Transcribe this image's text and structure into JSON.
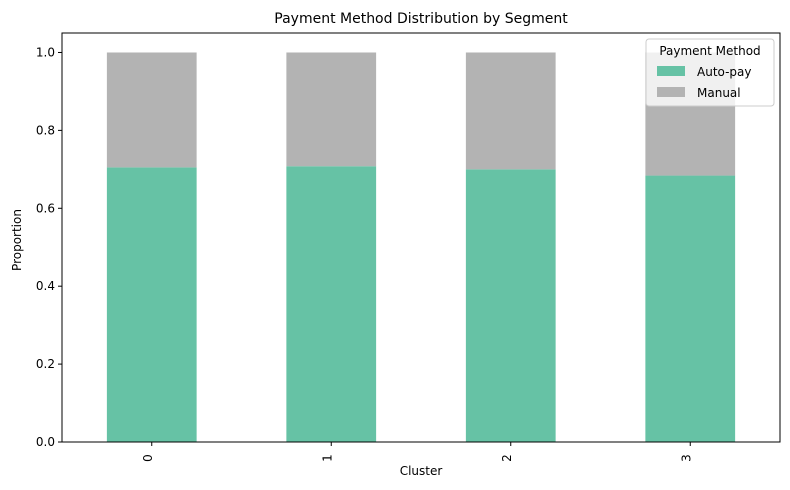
{
  "chart_data": {
    "type": "bar",
    "stacked": true,
    "title": "Payment Method Distribution by Segment",
    "xlabel": "Cluster",
    "ylabel": "Proportion",
    "categories": [
      "0",
      "1",
      "2",
      "3"
    ],
    "series": [
      {
        "name": "Auto-pay",
        "values": [
          0.705,
          0.708,
          0.7,
          0.684
        ],
        "color": "#66c2a5"
      },
      {
        "name": "Manual",
        "values": [
          0.295,
          0.292,
          0.3,
          0.316
        ],
        "color": "#b3b3b3"
      }
    ],
    "ylim": [
      0,
      1.05
    ],
    "yticks": [
      "0.0",
      "0.2",
      "0.4",
      "0.6",
      "0.8",
      "1.0"
    ],
    "legend": {
      "title": "Payment Method",
      "placement": "top-right"
    },
    "grid": false
  }
}
